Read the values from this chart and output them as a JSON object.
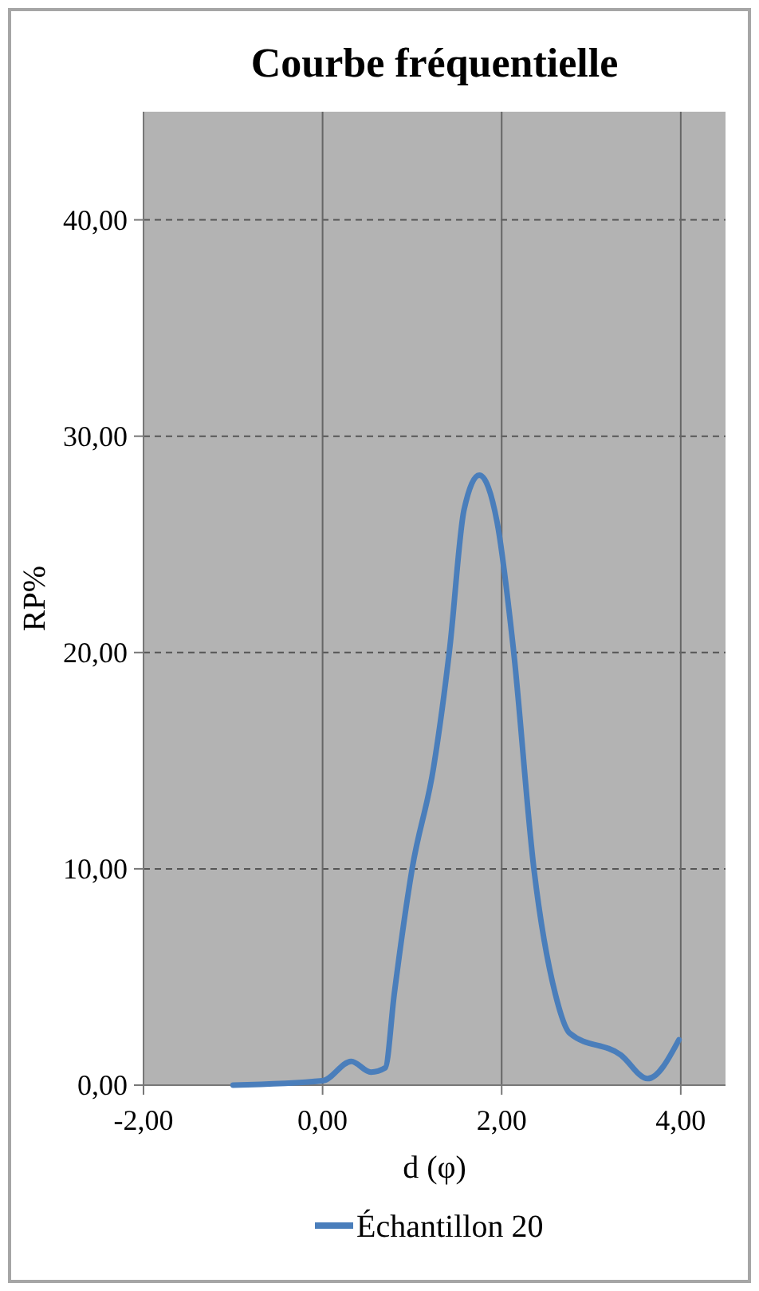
{
  "chart_data": {
    "type": "line",
    "title": "Courbe fréquentielle",
    "xlabel": "d (φ)",
    "ylabel": "RP%",
    "x": [
      -1,
      0,
      0.32,
      0.54,
      0.7,
      0.8,
      1.0,
      1.24,
      1.42,
      1.58,
      1.75,
      1.95,
      2.13,
      2.36,
      2.6,
      2.76,
      3.33,
      3.63,
      3.98
    ],
    "series": [
      {
        "name": "Échantillon 20",
        "color": "#4a7ebb",
        "values": [
          0,
          0.2,
          1.1,
          0.6,
          0.8,
          4.2,
          10,
          14.7,
          20.2,
          26.6,
          28.2,
          26,
          20.2,
          10,
          4.2,
          2.4,
          1.4,
          0.3,
          2.1
        ]
      }
    ],
    "xlim": [
      -2,
      4.5
    ],
    "ylim": [
      0,
      45
    ],
    "xticks": [
      {
        "value": -2,
        "label": "-2,00"
      },
      {
        "value": 0,
        "label": "0,00"
      },
      {
        "value": 2,
        "label": "2,00"
      },
      {
        "value": 4,
        "label": "4,00"
      }
    ],
    "yticks": [
      {
        "value": 0,
        "label": "0,00"
      },
      {
        "value": 10,
        "label": "10,00"
      },
      {
        "value": 20,
        "label": "20,00"
      },
      {
        "value": 30,
        "label": "30,00"
      },
      {
        "value": 40,
        "label": "40,00"
      }
    ],
    "grid": true,
    "legend": "bottom",
    "marker": "none",
    "line_style": "solid"
  }
}
